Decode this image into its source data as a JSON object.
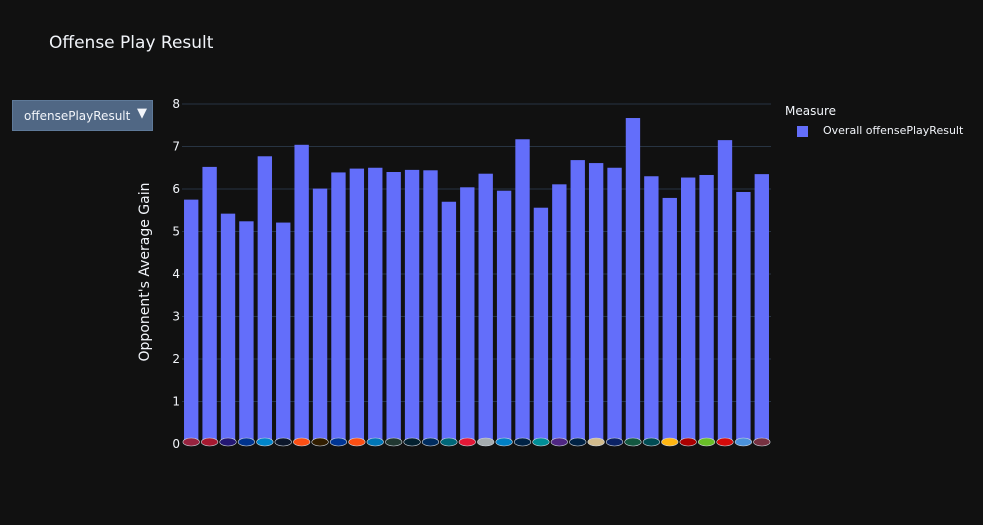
{
  "chart_data": {
    "type": "bar",
    "title": "Offense Play Result",
    "ylabel": "Opponent's Average Gain",
    "xlabel": "",
    "ylim": [
      0,
      8
    ],
    "yticks": [
      0,
      1,
      2,
      3,
      4,
      5,
      6,
      7,
      8
    ],
    "grid": true,
    "legend_position": "top-right",
    "legend_title": "Measure",
    "bar_color": "#636efa",
    "background_color": "#111111",
    "grid_color": "#283442",
    "series": [
      {
        "name": "Overall offensePlayResult",
        "values": [
          5.75,
          6.52,
          5.42,
          5.24,
          6.77,
          5.21,
          7.04,
          6.01,
          6.39,
          6.48,
          6.5,
          6.4,
          6.45,
          6.44,
          5.7,
          6.04,
          6.36,
          5.96,
          7.17,
          5.56,
          6.11,
          6.68,
          6.61,
          6.5,
          7.67,
          6.3,
          5.79,
          6.27,
          6.33,
          7.15,
          5.93,
          6.35
        ]
      }
    ]
  },
  "dropdown": {
    "selected": "offensePlayResult",
    "arrow_icon": "triangle-down-icon"
  }
}
